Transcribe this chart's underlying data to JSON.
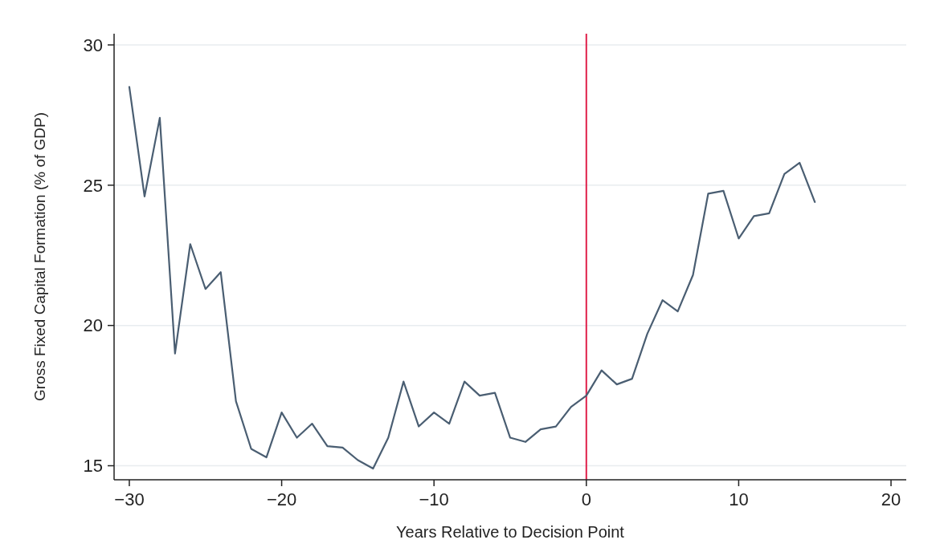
{
  "chart_data": {
    "type": "line",
    "xlabel": "Years Relative to Decision Point",
    "ylabel": "Gross Fixed Capital Formation (% of GDP)",
    "x": [
      -30,
      -29,
      -28,
      -27,
      -26,
      -25,
      -24,
      -23,
      -22,
      -21,
      -20,
      -19,
      -18,
      -17,
      -16,
      -15,
      -14,
      -13,
      -12,
      -11,
      -10,
      -9,
      -8,
      -7,
      -6,
      -5,
      -4,
      -3,
      -2,
      -1,
      0,
      1,
      2,
      3,
      4,
      5,
      6,
      7,
      8,
      9,
      10,
      11,
      12,
      13,
      14,
      15
    ],
    "series": [
      {
        "color": "#4a5e72",
        "values": [
          28.5,
          24.6,
          27.4,
          19.0,
          22.9,
          21.3,
          21.9,
          17.3,
          15.6,
          15.3,
          16.9,
          16.0,
          16.5,
          15.7,
          15.65,
          15.2,
          14.9,
          16.0,
          18.0,
          16.4,
          16.9,
          16.5,
          18.0,
          17.5,
          17.6,
          16.0,
          15.85,
          16.3,
          16.4,
          17.1,
          17.5,
          18.4,
          17.9,
          18.1,
          19.7,
          20.9,
          20.5,
          21.8,
          24.7,
          24.8,
          23.1,
          23.9,
          24.0,
          25.4,
          25.8,
          24.4
        ]
      }
    ],
    "xlim": [
      -31,
      21
    ],
    "ylim": [
      14.5,
      30.4
    ],
    "xticks": [
      {
        "value": -30,
        "label": "−30"
      },
      {
        "value": -20,
        "label": "−20"
      },
      {
        "value": -10,
        "label": "−10"
      },
      0,
      10,
      20
    ],
    "yticks": [
      15,
      20,
      25,
      30
    ],
    "grid": "y",
    "ref_lines": [
      {
        "axis": "x",
        "value": 0,
        "color": "#e0204a"
      }
    ]
  }
}
